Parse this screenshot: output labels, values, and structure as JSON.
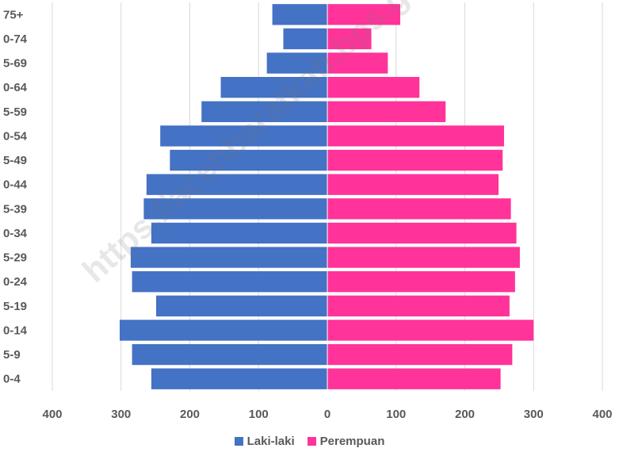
{
  "watermark": "https://acehbaratkab.bps.go.id",
  "chart_data": {
    "type": "bar",
    "orientation": "horizontal",
    "subtype": "population-pyramid",
    "categories": [
      "75+",
      "0-74",
      "5-69",
      "0-64",
      "5-59",
      "0-54",
      "5-49",
      "0-44",
      "5-39",
      "0-34",
      "5-29",
      "0-24",
      "5-19",
      "0-14",
      "5-9",
      "0-4"
    ],
    "series": [
      {
        "name": "Laki-laki",
        "color": "#4472C4",
        "values": [
          80,
          64,
          88,
          155,
          183,
          243,
          229,
          263,
          267,
          256,
          286,
          284,
          249,
          302,
          284,
          256
        ]
      },
      {
        "name": "Perempuan",
        "color": "#FF3399",
        "values": [
          106,
          64,
          88,
          134,
          172,
          257,
          255,
          249,
          267,
          275,
          280,
          273,
          265,
          300,
          269,
          252
        ]
      }
    ],
    "xlim": [
      -400,
      400
    ],
    "x_ticks": [
      -400,
      -300,
      -200,
      -100,
      0,
      100,
      200,
      300,
      400
    ],
    "x_tick_labels": [
      "400",
      "300",
      "200",
      "100",
      "0",
      "100",
      "200",
      "300",
      "400"
    ],
    "grid": "vertical",
    "legend_position": "bottom",
    "title": "",
    "xlabel": "",
    "ylabel": ""
  }
}
